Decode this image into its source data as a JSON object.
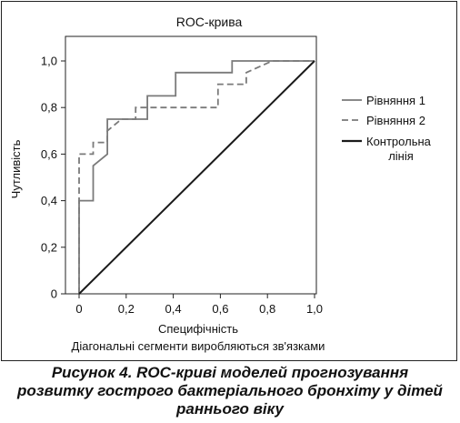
{
  "chart_data": {
    "type": "line",
    "title": "ROC-крива",
    "xlabel": "Специфічність",
    "ylabel": "Чутливість",
    "note": "Діагональні сегменти виробляються зв'язками",
    "xlim": [
      0,
      1
    ],
    "ylim": [
      0,
      1
    ],
    "x_ticks": [
      "0",
      "0,2",
      "0,4",
      "0,6",
      "0,8",
      "1,0"
    ],
    "y_ticks": [
      "0",
      "0,2",
      "0,4",
      "0,6",
      "0,8",
      "1,0"
    ],
    "x_tick_values": [
      0,
      0.2,
      0.4,
      0.6,
      0.8,
      1.0
    ],
    "y_tick_values": [
      0,
      0.2,
      0.4,
      0.6,
      0.8,
      1.0
    ],
    "grid": false,
    "legend_position": "right",
    "series": [
      {
        "name": "Рівняння 1",
        "style": "solid",
        "color": "#7a7a7a",
        "x": [
          0,
          0,
          0.06,
          0.06,
          0.12,
          0.12,
          0.29,
          0.29,
          0.41,
          0.41,
          0.65,
          0.65,
          1.0
        ],
        "y": [
          0,
          0.4,
          0.4,
          0.55,
          0.6,
          0.75,
          0.75,
          0.85,
          0.85,
          0.95,
          0.95,
          1.0,
          1.0
        ]
      },
      {
        "name": "Рівняння 2",
        "style": "dashed",
        "color": "#7a7a7a",
        "x": [
          0,
          0,
          0.06,
          0.06,
          0.12,
          0.12,
          0.18,
          0.24,
          0.24,
          0.59,
          0.59,
          0.71,
          0.71,
          0.82,
          1.0
        ],
        "y": [
          0,
          0.6,
          0.6,
          0.65,
          0.65,
          0.7,
          0.75,
          0.75,
          0.8,
          0.8,
          0.9,
          0.9,
          0.95,
          1.0,
          1.0
        ]
      },
      {
        "name": "Контрольна лінія",
        "legend_lines": [
          "Контрольна",
          "лінія"
        ],
        "style": "solid",
        "color": "#1a1a1a",
        "x": [
          0,
          1
        ],
        "y": [
          0,
          1
        ]
      }
    ]
  },
  "caption": {
    "lines": [
      "Рисунок 4. ROC-криві моделей прогнозування",
      "розвитку гострого бактеріального бронхіту у дітей",
      "раннього віку"
    ]
  }
}
